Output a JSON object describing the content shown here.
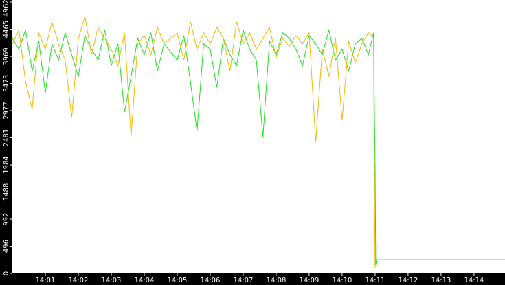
{
  "chart_data": {
    "type": "line",
    "x": [
      0,
      0.2,
      0.4,
      0.6,
      0.8,
      1,
      1.2,
      1.4,
      1.6,
      1.8,
      2,
      2.2,
      2.4,
      2.6,
      2.8,
      3,
      3.2,
      3.4,
      3.6,
      3.8,
      4,
      4.2,
      4.4,
      4.6,
      4.8,
      5,
      5.2,
      5.4,
      5.6,
      5.8,
      6,
      6.2,
      6.4,
      6.6,
      6.8,
      7,
      7.2,
      7.4,
      7.6,
      7.8,
      8,
      8.2,
      8.4,
      8.6,
      8.8,
      9,
      9.2,
      9.4,
      9.6,
      9.8,
      10,
      10.2,
      10.4,
      10.6,
      10.8,
      10.95,
      11,
      11.02,
      11.05,
      14.94
    ],
    "series": [
      {
        "color": "#22dd22",
        "values": [
          4300,
          4100,
          4450,
          3700,
          4250,
          3300,
          4200,
          3900,
          4400,
          4000,
          3600,
          4350,
          4100,
          3900,
          4450,
          3800,
          4200,
          2950,
          3600,
          4300,
          4000,
          4400,
          3700,
          4200,
          4050,
          3900,
          4350,
          3500,
          2600,
          4200,
          4100,
          3400,
          4300,
          4000,
          3800,
          4450,
          4100,
          3900,
          2500,
          4250,
          4000,
          4400,
          4300,
          4100,
          3800,
          4350,
          4200,
          4000,
          4450,
          3900,
          4100,
          3700,
          4200,
          4300,
          4000,
          4400,
          2000,
          150,
          250,
          250
        ]
      },
      {
        "color": "#f5b800",
        "values": [
          4200,
          4450,
          3500,
          3000,
          4400,
          4100,
          4600,
          4200,
          3900,
          2850,
          4300,
          4700,
          4000,
          4500,
          4300,
          4100,
          3800,
          4400,
          2500,
          4200,
          4350,
          4000,
          4500,
          4200,
          4300,
          4400,
          3900,
          4600,
          4100,
          4400,
          4200,
          4500,
          4300,
          3700,
          4600,
          4200,
          4400,
          4100,
          4300,
          4500,
          3950,
          4300,
          4150,
          4350,
          4200,
          4400,
          2400,
          4100,
          3600,
          4300,
          2800,
          4250,
          3850,
          4200,
          4400,
          4300,
          100,
          null,
          null,
          null
        ]
      }
    ],
    "xlim": [
      0,
      14.94
    ],
    "xticks": [
      {
        "value": 1,
        "label": "14:01"
      },
      {
        "value": 2,
        "label": "14:02"
      },
      {
        "value": 3,
        "label": "14:03"
      },
      {
        "value": 4,
        "label": "14:04"
      },
      {
        "value": 5,
        "label": "14:05"
      },
      {
        "value": 6,
        "label": "14:06"
      },
      {
        "value": 7,
        "label": "14:07"
      },
      {
        "value": 8,
        "label": "14:08"
      },
      {
        "value": 9,
        "label": "14:09"
      },
      {
        "value": 10,
        "label": "14:10"
      },
      {
        "value": 11,
        "label": "14:11"
      },
      {
        "value": 12,
        "label": "14:12"
      },
      {
        "value": 13,
        "label": "14:13"
      },
      {
        "value": 14,
        "label": "14:14"
      }
    ],
    "ylim": [
      0,
      4962
    ],
    "yticks": [
      0,
      496,
      992,
      1488,
      1984,
      2481,
      2977,
      3473,
      3969,
      4465,
      4962
    ]
  }
}
